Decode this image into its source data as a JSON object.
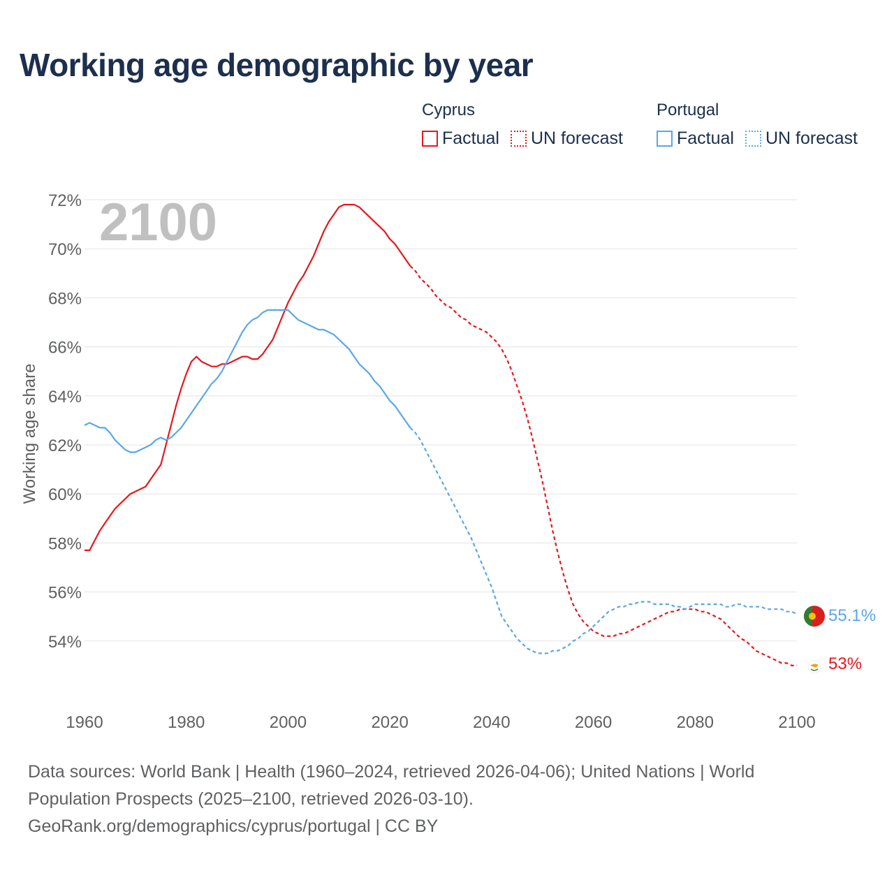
{
  "title": "Working age demographic by year",
  "legend": {
    "groups": [
      {
        "country": "Cyprus",
        "color": "#e8161b",
        "factual_label": "Factual",
        "forecast_label": "UN forecast"
      },
      {
        "country": "Portugal",
        "color": "#5aa7e6",
        "factual_label": "Factual",
        "forecast_label": "UN forecast"
      }
    ]
  },
  "footer": {
    "line1": "Data sources: World Bank | Health (1960–2024, retrieved 2026-04-06); United Nations | World",
    "line2": "Population Prospects (2025–2100, retrieved 2026-03-10).",
    "line3": "GeoRank.org/demographics/cyprus/portugal | CC BY"
  },
  "chart_data": {
    "type": "line",
    "title": "Working age demographic by year",
    "year_watermark": "2100",
    "xlabel": "",
    "ylabel": "Working age share",
    "xlim": [
      1960,
      2100
    ],
    "ylim": [
      52,
      72
    ],
    "x_ticks": [
      "1960",
      "1980",
      "2000",
      "2020",
      "2040",
      "2060",
      "2080",
      "2100"
    ],
    "y_ticks": [
      "54%",
      "56%",
      "58%",
      "60%",
      "62%",
      "64%",
      "66%",
      "68%",
      "70%",
      "72%"
    ],
    "factual_range": [
      1960,
      2024
    ],
    "forecast_range": [
      2024,
      2100
    ],
    "series": [
      {
        "name": "Cyprus",
        "color": "#e8161b",
        "end_label": "53%",
        "points": [
          [
            1960,
            57.7
          ],
          [
            1961,
            57.7
          ],
          [
            1962,
            58.1
          ],
          [
            1963,
            58.5
          ],
          [
            1964,
            58.8
          ],
          [
            1965,
            59.1
          ],
          [
            1966,
            59.4
          ],
          [
            1967,
            59.6
          ],
          [
            1968,
            59.8
          ],
          [
            1969,
            60.0
          ],
          [
            1970,
            60.1
          ],
          [
            1971,
            60.2
          ],
          [
            1972,
            60.3
          ],
          [
            1973,
            60.6
          ],
          [
            1974,
            60.9
          ],
          [
            1975,
            61.2
          ],
          [
            1976,
            62.0
          ],
          [
            1977,
            62.8
          ],
          [
            1978,
            63.6
          ],
          [
            1979,
            64.3
          ],
          [
            1980,
            64.9
          ],
          [
            1981,
            65.4
          ],
          [
            1982,
            65.6
          ],
          [
            1983,
            65.4
          ],
          [
            1984,
            65.3
          ],
          [
            1985,
            65.2
          ],
          [
            1986,
            65.2
          ],
          [
            1987,
            65.3
          ],
          [
            1988,
            65.3
          ],
          [
            1989,
            65.4
          ],
          [
            1990,
            65.5
          ],
          [
            1991,
            65.6
          ],
          [
            1992,
            65.6
          ],
          [
            1993,
            65.5
          ],
          [
            1994,
            65.5
          ],
          [
            1995,
            65.7
          ],
          [
            1996,
            66.0
          ],
          [
            1997,
            66.3
          ],
          [
            1998,
            66.8
          ],
          [
            1999,
            67.3
          ],
          [
            2000,
            67.8
          ],
          [
            2001,
            68.2
          ],
          [
            2002,
            68.6
          ],
          [
            2003,
            68.9
          ],
          [
            2004,
            69.3
          ],
          [
            2005,
            69.7
          ],
          [
            2006,
            70.2
          ],
          [
            2007,
            70.7
          ],
          [
            2008,
            71.1
          ],
          [
            2009,
            71.4
          ],
          [
            2010,
            71.7
          ],
          [
            2011,
            71.8
          ],
          [
            2012,
            71.8
          ],
          [
            2013,
            71.8
          ],
          [
            2014,
            71.7
          ],
          [
            2015,
            71.5
          ],
          [
            2016,
            71.3
          ],
          [
            2017,
            71.1
          ],
          [
            2018,
            70.9
          ],
          [
            2019,
            70.7
          ],
          [
            2020,
            70.4
          ],
          [
            2021,
            70.2
          ],
          [
            2022,
            69.9
          ],
          [
            2023,
            69.6
          ],
          [
            2024,
            69.3
          ],
          [
            2025,
            69.1
          ],
          [
            2026,
            68.8
          ],
          [
            2027,
            68.6
          ],
          [
            2028,
            68.4
          ],
          [
            2029,
            68.1
          ],
          [
            2030,
            67.9
          ],
          [
            2031,
            67.7
          ],
          [
            2032,
            67.6
          ],
          [
            2033,
            67.4
          ],
          [
            2034,
            67.2
          ],
          [
            2035,
            67.1
          ],
          [
            2036,
            66.9
          ],
          [
            2037,
            66.8
          ],
          [
            2038,
            66.7
          ],
          [
            2039,
            66.6
          ],
          [
            2040,
            66.4
          ],
          [
            2041,
            66.2
          ],
          [
            2042,
            65.9
          ],
          [
            2043,
            65.5
          ],
          [
            2044,
            65.0
          ],
          [
            2045,
            64.4
          ],
          [
            2046,
            63.8
          ],
          [
            2047,
            63.1
          ],
          [
            2048,
            62.3
          ],
          [
            2049,
            61.4
          ],
          [
            2050,
            60.5
          ],
          [
            2051,
            59.5
          ],
          [
            2052,
            58.5
          ],
          [
            2053,
            57.6
          ],
          [
            2054,
            56.8
          ],
          [
            2055,
            56.1
          ],
          [
            2056,
            55.5
          ],
          [
            2057,
            55.1
          ],
          [
            2058,
            54.8
          ],
          [
            2059,
            54.6
          ],
          [
            2060,
            54.4
          ],
          [
            2061,
            54.3
          ],
          [
            2062,
            54.2
          ],
          [
            2063,
            54.2
          ],
          [
            2064,
            54.2
          ],
          [
            2065,
            54.3
          ],
          [
            2066,
            54.3
          ],
          [
            2067,
            54.4
          ],
          [
            2068,
            54.5
          ],
          [
            2069,
            54.6
          ],
          [
            2070,
            54.7
          ],
          [
            2071,
            54.8
          ],
          [
            2072,
            54.9
          ],
          [
            2073,
            55.0
          ],
          [
            2074,
            55.1
          ],
          [
            2075,
            55.2
          ],
          [
            2076,
            55.2
          ],
          [
            2077,
            55.3
          ],
          [
            2078,
            55.3
          ],
          [
            2079,
            55.3
          ],
          [
            2080,
            55.3
          ],
          [
            2081,
            55.2
          ],
          [
            2082,
            55.2
          ],
          [
            2083,
            55.1
          ],
          [
            2084,
            55.0
          ],
          [
            2085,
            54.9
          ],
          [
            2086,
            54.7
          ],
          [
            2087,
            54.5
          ],
          [
            2088,
            54.3
          ],
          [
            2089,
            54.1
          ],
          [
            2090,
            54.0
          ],
          [
            2091,
            53.8
          ],
          [
            2092,
            53.6
          ],
          [
            2093,
            53.5
          ],
          [
            2094,
            53.4
          ],
          [
            2095,
            53.3
          ],
          [
            2096,
            53.2
          ],
          [
            2097,
            53.1
          ],
          [
            2098,
            53.1
          ],
          [
            2099,
            53.0
          ],
          [
            2100,
            53.0
          ]
        ]
      },
      {
        "name": "Portugal",
        "color": "#5aa7e6",
        "end_label": "55.1%",
        "points": [
          [
            1960,
            62.8
          ],
          [
            1961,
            62.9
          ],
          [
            1962,
            62.8
          ],
          [
            1963,
            62.7
          ],
          [
            1964,
            62.7
          ],
          [
            1965,
            62.5
          ],
          [
            1966,
            62.2
          ],
          [
            1967,
            62.0
          ],
          [
            1968,
            61.8
          ],
          [
            1969,
            61.7
          ],
          [
            1970,
            61.7
          ],
          [
            1971,
            61.8
          ],
          [
            1972,
            61.9
          ],
          [
            1973,
            62.0
          ],
          [
            1974,
            62.2
          ],
          [
            1975,
            62.3
          ],
          [
            1976,
            62.2
          ],
          [
            1977,
            62.3
          ],
          [
            1978,
            62.5
          ],
          [
            1979,
            62.7
          ],
          [
            1980,
            63.0
          ],
          [
            1981,
            63.3
          ],
          [
            1982,
            63.6
          ],
          [
            1983,
            63.9
          ],
          [
            1984,
            64.2
          ],
          [
            1985,
            64.5
          ],
          [
            1986,
            64.7
          ],
          [
            1987,
            65.0
          ],
          [
            1988,
            65.4
          ],
          [
            1989,
            65.8
          ],
          [
            1990,
            66.2
          ],
          [
            1991,
            66.6
          ],
          [
            1992,
            66.9
          ],
          [
            1993,
            67.1
          ],
          [
            1994,
            67.2
          ],
          [
            1995,
            67.4
          ],
          [
            1996,
            67.5
          ],
          [
            1997,
            67.5
          ],
          [
            1998,
            67.5
          ],
          [
            1999,
            67.5
          ],
          [
            2000,
            67.5
          ],
          [
            2001,
            67.3
          ],
          [
            2002,
            67.1
          ],
          [
            2003,
            67.0
          ],
          [
            2004,
            66.9
          ],
          [
            2005,
            66.8
          ],
          [
            2006,
            66.7
          ],
          [
            2007,
            66.7
          ],
          [
            2008,
            66.6
          ],
          [
            2009,
            66.5
          ],
          [
            2010,
            66.3
          ],
          [
            2011,
            66.1
          ],
          [
            2012,
            65.9
          ],
          [
            2013,
            65.6
          ],
          [
            2014,
            65.3
          ],
          [
            2015,
            65.1
          ],
          [
            2016,
            64.9
          ],
          [
            2017,
            64.6
          ],
          [
            2018,
            64.4
          ],
          [
            2019,
            64.1
          ],
          [
            2020,
            63.8
          ],
          [
            2021,
            63.6
          ],
          [
            2022,
            63.3
          ],
          [
            2023,
            63.0
          ],
          [
            2024,
            62.7
          ],
          [
            2025,
            62.5
          ],
          [
            2026,
            62.2
          ],
          [
            2027,
            61.8
          ],
          [
            2028,
            61.4
          ],
          [
            2029,
            61.0
          ],
          [
            2030,
            60.6
          ],
          [
            2031,
            60.2
          ],
          [
            2032,
            59.8
          ],
          [
            2033,
            59.4
          ],
          [
            2034,
            59.0
          ],
          [
            2035,
            58.6
          ],
          [
            2036,
            58.2
          ],
          [
            2037,
            57.7
          ],
          [
            2038,
            57.2
          ],
          [
            2039,
            56.7
          ],
          [
            2040,
            56.2
          ],
          [
            2041,
            55.6
          ],
          [
            2042,
            55.0
          ],
          [
            2043,
            54.7
          ],
          [
            2044,
            54.4
          ],
          [
            2045,
            54.1
          ],
          [
            2046,
            53.9
          ],
          [
            2047,
            53.7
          ],
          [
            2048,
            53.6
          ],
          [
            2049,
            53.5
          ],
          [
            2050,
            53.5
          ],
          [
            2051,
            53.5
          ],
          [
            2052,
            53.6
          ],
          [
            2053,
            53.6
          ],
          [
            2054,
            53.7
          ],
          [
            2055,
            53.8
          ],
          [
            2056,
            54.0
          ],
          [
            2057,
            54.1
          ],
          [
            2058,
            54.3
          ],
          [
            2059,
            54.4
          ],
          [
            2060,
            54.6
          ],
          [
            2061,
            54.8
          ],
          [
            2062,
            55.0
          ],
          [
            2063,
            55.2
          ],
          [
            2064,
            55.3
          ],
          [
            2065,
            55.4
          ],
          [
            2066,
            55.4
          ],
          [
            2067,
            55.5
          ],
          [
            2068,
            55.5
          ],
          [
            2069,
            55.6
          ],
          [
            2070,
            55.6
          ],
          [
            2071,
            55.6
          ],
          [
            2072,
            55.5
          ],
          [
            2073,
            55.5
          ],
          [
            2074,
            55.5
          ],
          [
            2075,
            55.5
          ],
          [
            2076,
            55.4
          ],
          [
            2077,
            55.4
          ],
          [
            2078,
            55.3
          ],
          [
            2079,
            55.4
          ],
          [
            2080,
            55.5
          ],
          [
            2081,
            55.5
          ],
          [
            2082,
            55.5
          ],
          [
            2083,
            55.5
          ],
          [
            2084,
            55.5
          ],
          [
            2085,
            55.5
          ],
          [
            2086,
            55.4
          ],
          [
            2087,
            55.4
          ],
          [
            2088,
            55.5
          ],
          [
            2089,
            55.5
          ],
          [
            2090,
            55.4
          ],
          [
            2091,
            55.4
          ],
          [
            2092,
            55.4
          ],
          [
            2093,
            55.4
          ],
          [
            2094,
            55.3
          ],
          [
            2095,
            55.3
          ],
          [
            2096,
            55.3
          ],
          [
            2097,
            55.3
          ],
          [
            2098,
            55.2
          ],
          [
            2099,
            55.2
          ],
          [
            2100,
            55.1
          ]
        ]
      }
    ]
  }
}
